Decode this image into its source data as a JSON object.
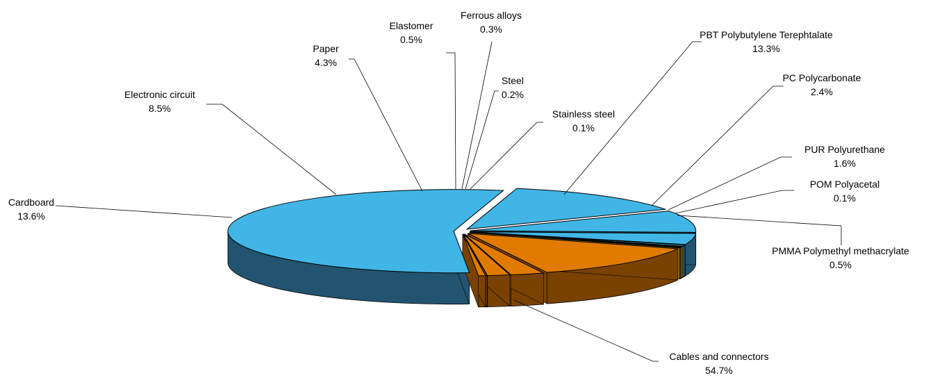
{
  "chart_data": {
    "type": "pie",
    "title": "",
    "style": "3d-exploded",
    "slices": [
      {
        "name": "Cables and connectors",
        "value": 54.7,
        "value_label": "54.7%",
        "color": "#41b6e6",
        "side_color": "#22546f"
      },
      {
        "name": "Cardboard",
        "value": 13.6,
        "value_label": "13.6%",
        "color": "#41b6e6",
        "side_color": "#22546f"
      },
      {
        "name": "Electronic circuit",
        "value": 8.5,
        "value_label": "8.5%",
        "color": "#41b6e6",
        "side_color": "#22546f"
      },
      {
        "name": "Paper",
        "value": 4.3,
        "value_label": "4.3%",
        "color": "#41b6e6",
        "side_color": "#22546f"
      },
      {
        "name": "Elastomer",
        "value": 0.5,
        "value_label": "0.5%",
        "color": "#41b6e6",
        "side_color": "#22546f"
      },
      {
        "name": "Ferrous alloys",
        "value": 0.3,
        "value_label": "0.3%",
        "color": "#f1c40f",
        "side_color": "#8a6d05"
      },
      {
        "name": "Steel",
        "value": 0.2,
        "value_label": "0.2%",
        "color": "#e8b90a",
        "side_color": "#8a6d05"
      },
      {
        "name": "Stainless steel",
        "value": 0.1,
        "value_label": "0.1%",
        "color": "#d4a40a",
        "side_color": "#8a6d05"
      },
      {
        "name": "PBT Polybutylene Terephtalate",
        "value": 13.3,
        "value_label": "13.3%",
        "color": "#e07b00",
        "side_color": "#7a4200"
      },
      {
        "name": "PC Polycarbonate",
        "value": 2.4,
        "value_label": "2.4%",
        "color": "#e07b00",
        "side_color": "#7a4200"
      },
      {
        "name": "PUR Polyurethane",
        "value": 1.6,
        "value_label": "1.6%",
        "color": "#e07b00",
        "side_color": "#7a4200"
      },
      {
        "name": "POM Polyacetal",
        "value": 0.1,
        "value_label": "0.1%",
        "color": "#e07b00",
        "side_color": "#7a4200"
      },
      {
        "name": "PMMA Polymethyl methacrylate",
        "value": 0.5,
        "value_label": "0.5%",
        "color": "#e07b00",
        "side_color": "#7a4200"
      }
    ]
  }
}
